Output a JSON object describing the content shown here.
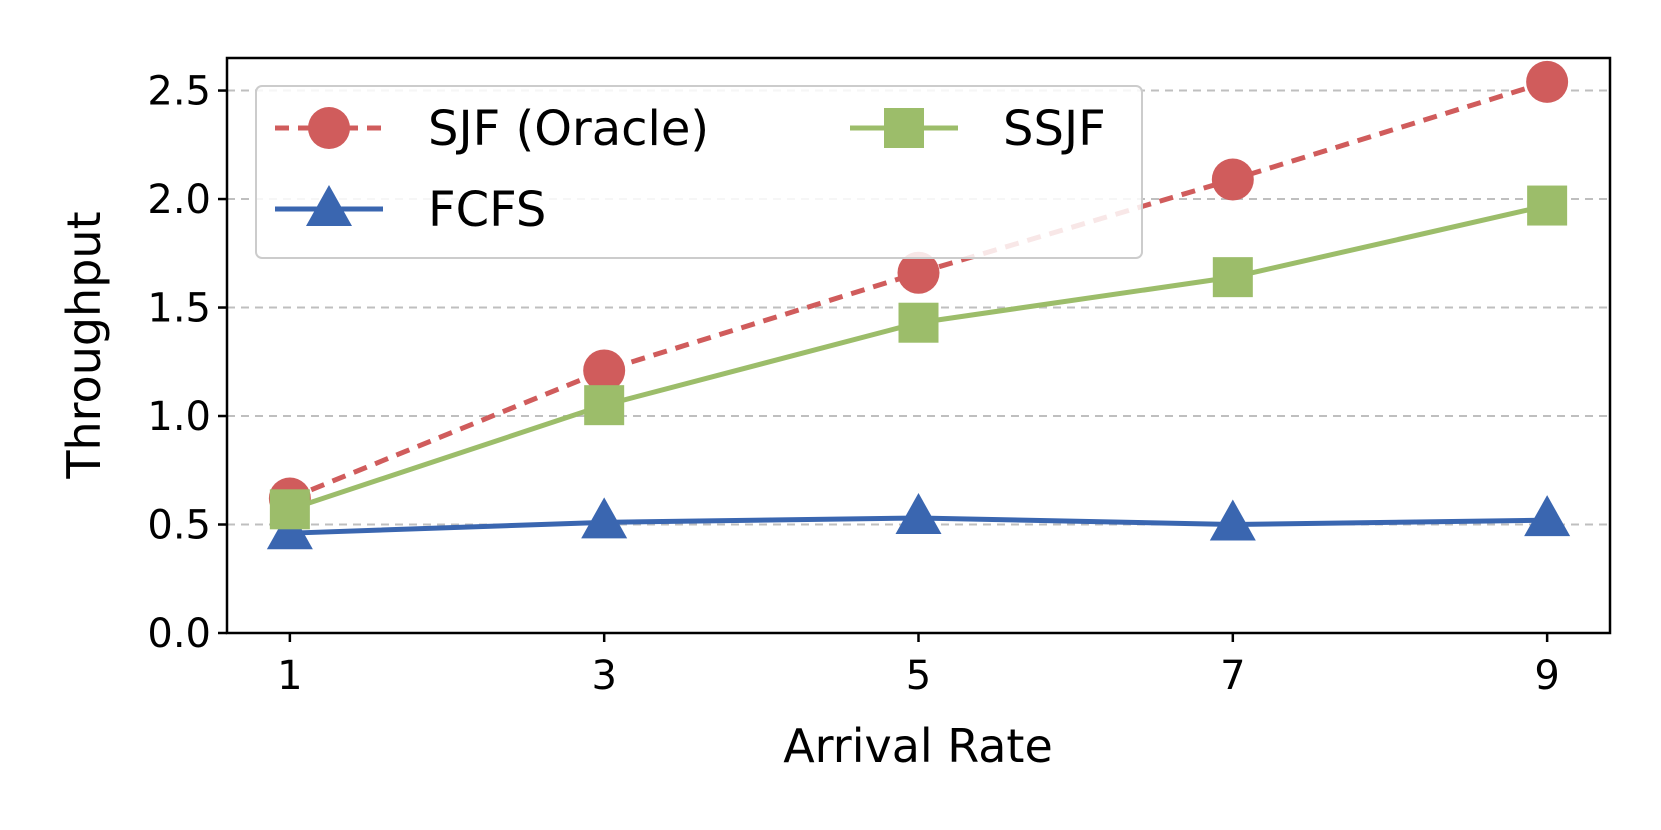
{
  "chart_data": {
    "type": "line",
    "xlabel": "Arrival Rate",
    "ylabel": "Throughput",
    "x": [
      1,
      3,
      5,
      7,
      9
    ],
    "x_ticks": [
      "1",
      "3",
      "5",
      "7",
      "9"
    ],
    "y_ticks": [
      "0.0",
      "0.5",
      "1.0",
      "1.5",
      "2.0",
      "2.5"
    ],
    "xlim": [
      0.6,
      9.4
    ],
    "ylim": [
      0,
      2.65
    ],
    "grid": "horizontal dashed",
    "legend_position": "top-left",
    "series": [
      {
        "name": "SJF (Oracle)",
        "values": [
          0.62,
          1.21,
          1.66,
          2.09,
          2.54
        ],
        "color": "#d05c5c",
        "marker": "circle",
        "line_style": "dashed"
      },
      {
        "name": "FCFS",
        "values": [
          0.46,
          0.51,
          0.53,
          0.5,
          0.52
        ],
        "color": "#3a66b0",
        "marker": "triangle",
        "line_style": "solid"
      },
      {
        "name": "SSJF",
        "values": [
          0.57,
          1.05,
          1.43,
          1.64,
          1.97
        ],
        "color": "#9cbd6a",
        "marker": "square",
        "line_style": "solid"
      }
    ]
  }
}
